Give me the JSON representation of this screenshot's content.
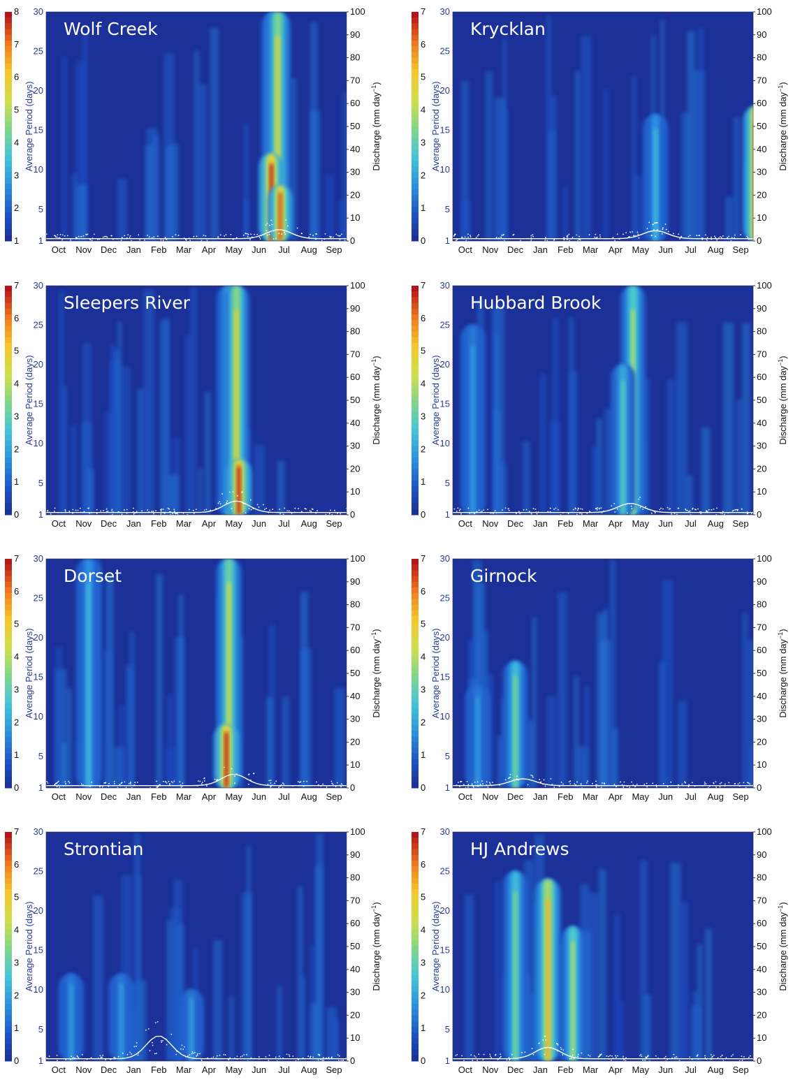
{
  "chart_data": [
    {
      "type": "heatmap",
      "title": "Wolf Creek",
      "ylabel": "Average Period (days)",
      "y2label": "Discharge (mm day",
      "y2label_exp": "−1",
      "y2label_close": ")",
      "x_ticks": [
        "Oct",
        "Nov",
        "Dec",
        "Jan",
        "Feb",
        "Mar",
        "Apr",
        "May",
        "Jun",
        "Jul",
        "Aug",
        "Sep"
      ],
      "y_ticks": [
        "1",
        "5",
        "10",
        "15",
        "20",
        "25",
        "30"
      ],
      "y_values": [
        1,
        5,
        10,
        15,
        20,
        25,
        30
      ],
      "ylim": [
        1,
        30
      ],
      "y2_ticks": [
        "0",
        "10",
        "20",
        "30",
        "40",
        "50",
        "60",
        "70",
        "80",
        "90",
        "100"
      ],
      "y2lim": [
        0,
        100
      ],
      "colorbar_ticks": [
        "1",
        "2",
        "3",
        "4",
        "5",
        "6",
        "7",
        "8"
      ],
      "colorbar_max": 8,
      "power_peaks": [
        {
          "month": 8.6,
          "period_top": 30,
          "power": 3.5
        },
        {
          "month": 8.75,
          "period_top": 30,
          "power": 5.5
        },
        {
          "month": 8.5,
          "period_top": 12,
          "power": 8
        },
        {
          "month": 8.85,
          "period_top": 8,
          "power": 7.5
        }
      ],
      "discharge_peak": {
        "month": 8.8,
        "value": 8
      }
    },
    {
      "type": "heatmap",
      "title": "Krycklan",
      "ylabel": "Average Period (days)",
      "y2label": "Discharge (mm day",
      "y2label_exp": "−1",
      "y2label_close": ")",
      "x_ticks": [
        "Oct",
        "Nov",
        "Dec",
        "Jan",
        "Feb",
        "Mar",
        "Apr",
        "May",
        "Jun",
        "Jul",
        "Aug",
        "Sep"
      ],
      "y_ticks": [
        "1",
        "5",
        "10",
        "15",
        "20",
        "25",
        "30"
      ],
      "y_values": [
        1,
        5,
        10,
        15,
        20,
        25,
        30
      ],
      "ylim": [
        1,
        30
      ],
      "y2_ticks": [
        "0",
        "10",
        "20",
        "30",
        "40",
        "50",
        "60",
        "70",
        "80",
        "90",
        "100"
      ],
      "y2lim": [
        0,
        100
      ],
      "colorbar_ticks": [
        "0",
        "1",
        "2",
        "3",
        "4",
        "5",
        "6",
        "7"
      ],
      "colorbar_max": 7,
      "power_peaks": [
        {
          "month": 7.6,
          "period_top": 17,
          "power": 2.5
        },
        {
          "month": 11.6,
          "period_top": 18,
          "power": 6.5
        }
      ],
      "discharge_peak": {
        "month": 7.6,
        "value": 7
      }
    },
    {
      "type": "heatmap",
      "title": "Sleepers River",
      "ylabel": "Average Period (days)",
      "y2label": "Discharge (mm day",
      "y2label_exp": "−1",
      "y2label_close": ")",
      "x_ticks": [
        "Oct",
        "Nov",
        "Dec",
        "Jan",
        "Feb",
        "Mar",
        "Apr",
        "May",
        "Jun",
        "Jul",
        "Aug",
        "Sep"
      ],
      "y_ticks": [
        "1",
        "5",
        "10",
        "15",
        "20",
        "25",
        "30"
      ],
      "y_values": [
        1,
        5,
        10,
        15,
        20,
        25,
        30
      ],
      "ylim": [
        1,
        30
      ],
      "y2_ticks": [
        "0",
        "10",
        "20",
        "30",
        "40",
        "50",
        "60",
        "70",
        "80",
        "90",
        "100"
      ],
      "y2lim": [
        0,
        100
      ],
      "colorbar_ticks": [
        "0",
        "1",
        "2",
        "3",
        "4",
        "5",
        "6",
        "7"
      ],
      "colorbar_max": 7,
      "power_peaks": [
        {
          "month": 6.8,
          "period_top": 30,
          "power": 3
        },
        {
          "month": 7.1,
          "period_top": 30,
          "power": 5
        },
        {
          "month": 7.2,
          "period_top": 8,
          "power": 7
        }
      ],
      "discharge_peak": {
        "month": 7.1,
        "value": 10
      }
    },
    {
      "type": "heatmap",
      "title": "Hubbard Brook",
      "ylabel": "Average Period (days)",
      "y2label": "Discharge (mm day",
      "y2label_exp": "−1",
      "y2label_close": ")",
      "x_ticks": [
        "Oct",
        "Nov",
        "Dec",
        "Jan",
        "Feb",
        "Mar",
        "Apr",
        "May",
        "Jun",
        "Jul",
        "Aug",
        "Sep"
      ],
      "y_ticks": [
        "1",
        "5",
        "10",
        "15",
        "20",
        "25",
        "30"
      ],
      "y_values": [
        1,
        5,
        10,
        15,
        20,
        25,
        30
      ],
      "ylim": [
        1,
        30
      ],
      "y2_ticks": [
        "0",
        "10",
        "20",
        "30",
        "40",
        "50",
        "60",
        "70",
        "80",
        "90",
        "100"
      ],
      "y2lim": [
        0,
        100
      ],
      "colorbar_ticks": [
        "0",
        "1",
        "2",
        "3",
        "4",
        "5",
        "6",
        "7"
      ],
      "colorbar_max": 7,
      "power_peaks": [
        {
          "month": 6.7,
          "period_top": 30,
          "power": 4
        },
        {
          "month": 6.3,
          "period_top": 20,
          "power": 3
        },
        {
          "month": 0.3,
          "period_top": 25,
          "power": 2
        }
      ],
      "discharge_peak": {
        "month": 6.6,
        "value": 8
      }
    },
    {
      "type": "heatmap",
      "title": "Dorset",
      "ylabel": "Average Period (days)",
      "y2label": "Discharge (mm day",
      "y2label_exp": "−1",
      "y2label_close": ")",
      "x_ticks": [
        "Oct",
        "Nov",
        "Dec",
        "Jan",
        "Feb",
        "Mar",
        "Apr",
        "May",
        "Jun",
        "Jul",
        "Aug",
        "Sep"
      ],
      "y_ticks": [
        "1",
        "5",
        "10",
        "15",
        "20",
        "25",
        "30"
      ],
      "y_values": [
        1,
        5,
        10,
        15,
        20,
        25,
        30
      ],
      "ylim": [
        1,
        30
      ],
      "y2_ticks": [
        "0",
        "10",
        "20",
        "30",
        "40",
        "50",
        "60",
        "70",
        "80",
        "90",
        "100"
      ],
      "y2lim": [
        0,
        100
      ],
      "colorbar_ticks": [
        "0",
        "1",
        "2",
        "3",
        "4",
        "5",
        "6",
        "7"
      ],
      "colorbar_max": 7,
      "power_peaks": [
        {
          "month": 6.8,
          "period_top": 30,
          "power": 4.5
        },
        {
          "month": 1.2,
          "period_top": 30,
          "power": 2.5
        },
        {
          "month": 6.7,
          "period_top": 9,
          "power": 7
        }
      ],
      "discharge_peak": {
        "month": 7.0,
        "value": 10
      }
    },
    {
      "type": "heatmap",
      "title": "Girnock",
      "ylabel": "Average Period (days)",
      "y2label": "Discharge (mm day",
      "y2label_exp": "−1",
      "y2label_close": ")",
      "x_ticks": [
        "Oct",
        "Nov",
        "Dec",
        "Jan",
        "Feb",
        "Mar",
        "Apr",
        "May",
        "Jun",
        "Jul",
        "Aug",
        "Sep"
      ],
      "y_ticks": [
        "1",
        "5",
        "10",
        "15",
        "20",
        "25",
        "30"
      ],
      "y_values": [
        1,
        5,
        10,
        15,
        20,
        25,
        30
      ],
      "ylim": [
        1,
        30
      ],
      "y2_ticks": [
        "0",
        "10",
        "20",
        "30",
        "40",
        "50",
        "60",
        "70",
        "80",
        "90",
        "100"
      ],
      "y2lim": [
        0,
        100
      ],
      "colorbar_ticks": [
        "0",
        "1",
        "2",
        "3",
        "4",
        "5",
        "6",
        "7"
      ],
      "colorbar_max": 7,
      "power_peaks": [
        {
          "month": 2.0,
          "period_top": 17,
          "power": 3.5
        },
        {
          "month": 0.5,
          "period_top": 14,
          "power": 2
        }
      ],
      "discharge_peak": {
        "month": 2.3,
        "value": 6
      }
    },
    {
      "type": "heatmap",
      "title": "Strontian",
      "ylabel": "Average Period (days)",
      "y2label": "Discharge (mm day",
      "y2label_exp": "−1",
      "y2label_close": ")",
      "x_ticks": [
        "Oct",
        "Nov",
        "Dec",
        "Jan",
        "Feb",
        "Mar",
        "Apr",
        "May",
        "Jun",
        "Jul",
        "Aug",
        "Sep"
      ],
      "y_ticks": [
        "1",
        "5",
        "10",
        "15",
        "20",
        "25",
        "30"
      ],
      "y_values": [
        1,
        5,
        10,
        15,
        20,
        25,
        30
      ],
      "ylim": [
        1,
        30
      ],
      "y2_ticks": [
        "0",
        "10",
        "20",
        "30",
        "40",
        "50",
        "60",
        "70",
        "80",
        "90",
        "100"
      ],
      "y2lim": [
        0,
        100
      ],
      "colorbar_ticks": [
        "0",
        "1",
        "2",
        "3",
        "4",
        "5",
        "6",
        "7"
      ],
      "colorbar_max": 7,
      "power_peaks": [
        {
          "month": 0.5,
          "period_top": 12,
          "power": 2
        },
        {
          "month": 2.5,
          "period_top": 12,
          "power": 2
        },
        {
          "month": 5.3,
          "period_top": 10,
          "power": 2
        }
      ],
      "discharge_peak": {
        "month": 4.0,
        "value": 20
      }
    },
    {
      "type": "heatmap",
      "title": "HJ Andrews",
      "ylabel": "Average Period (days)",
      "y2label": "Discharge (mm day",
      "y2label_exp": "−1",
      "y2label_close": ")",
      "x_ticks": [
        "Oct",
        "Nov",
        "Dec",
        "Jan",
        "Feb",
        "Mar",
        "Apr",
        "May",
        "Jun",
        "Jul",
        "Aug",
        "Sep"
      ],
      "y_ticks": [
        "1",
        "5",
        "10",
        "15",
        "20",
        "25",
        "30"
      ],
      "y_values": [
        1,
        5,
        10,
        15,
        20,
        25,
        30
      ],
      "ylim": [
        1,
        30
      ],
      "y2_ticks": [
        "0",
        "10",
        "20",
        "30",
        "40",
        "50",
        "60",
        "70",
        "80",
        "90",
        "100"
      ],
      "y2lim": [
        0,
        100
      ],
      "colorbar_ticks": [
        "0",
        "1",
        "2",
        "3",
        "4",
        "5",
        "6",
        "7"
      ],
      "colorbar_max": 7,
      "power_peaks": [
        {
          "month": 2.0,
          "period_top": 25,
          "power": 3.5
        },
        {
          "month": 3.3,
          "period_top": 24,
          "power": 5.5
        },
        {
          "month": 4.3,
          "period_top": 18,
          "power": 4
        }
      ],
      "discharge_peak": {
        "month": 3.3,
        "value": 10
      }
    }
  ]
}
